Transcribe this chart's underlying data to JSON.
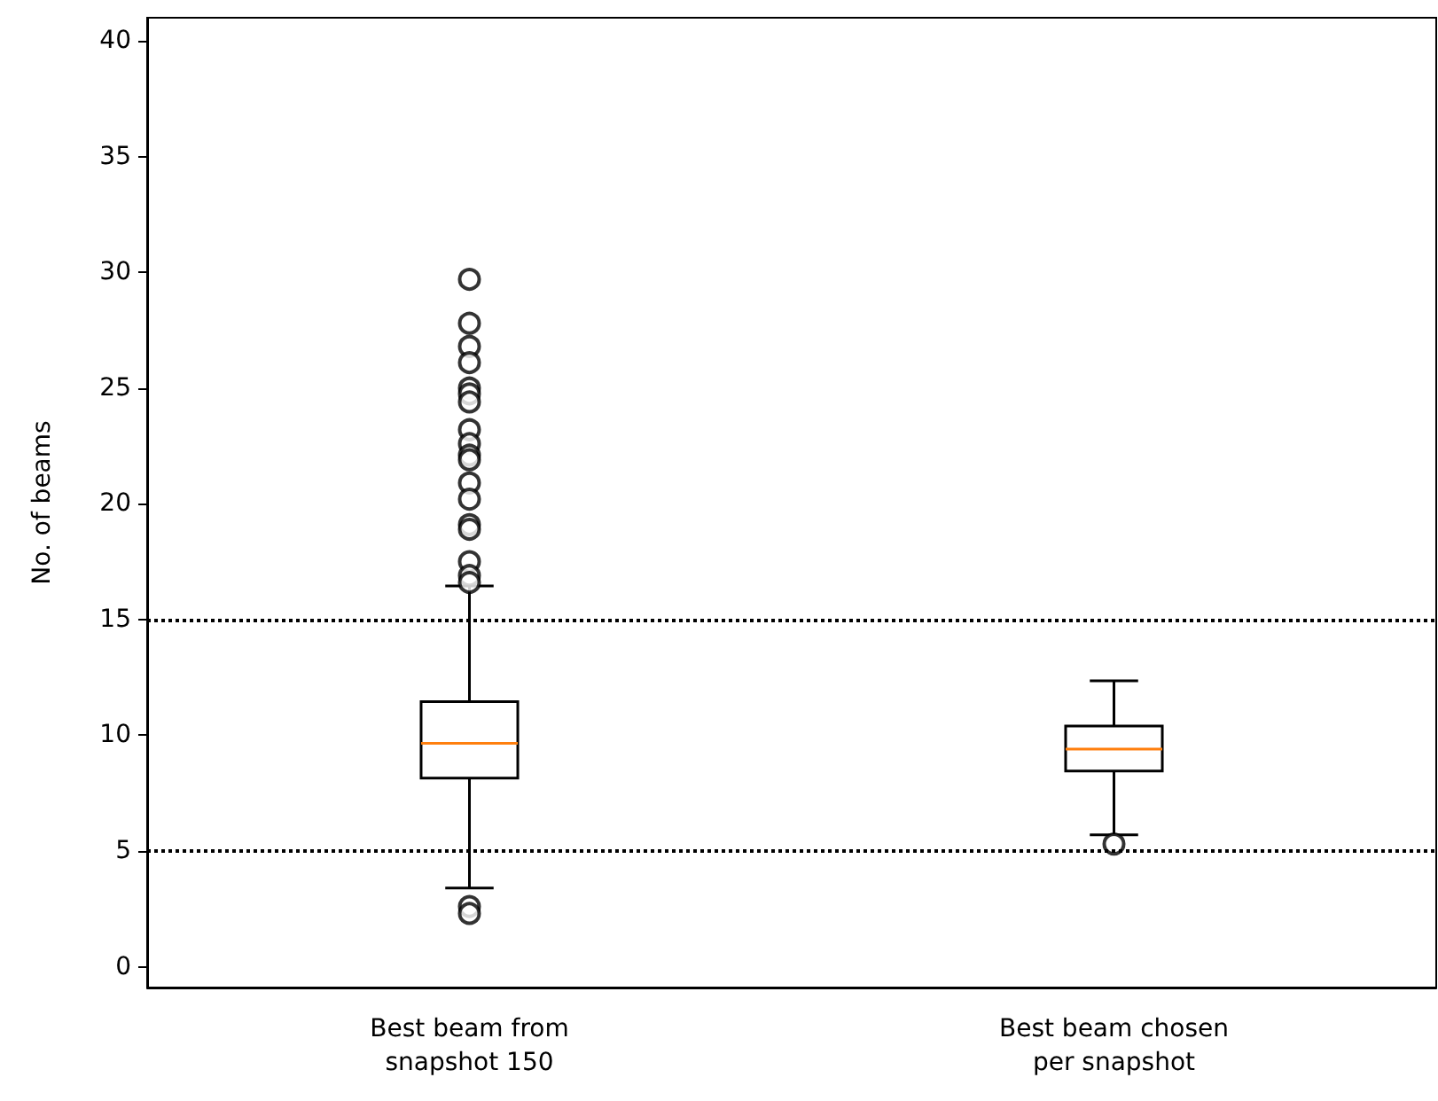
{
  "chart_data": {
    "type": "box",
    "ylabel": "No. of beams",
    "categories": [
      "Best beam from\nsnapshot 150",
      "Best beam chosen\nper snapshot"
    ],
    "boxes": [
      {
        "low": 3.4,
        "q1": 8.15,
        "median": 9.65,
        "q3": 11.45,
        "high": 16.45,
        "outliers": [
          29.7,
          27.8,
          26.8,
          26.1,
          25.0,
          24.75,
          24.4,
          23.2,
          22.6,
          22.1,
          21.9,
          20.9,
          20.2,
          19.1,
          18.9,
          17.5,
          16.9,
          16.6,
          2.6,
          2.3
        ]
      },
      {
        "low": 5.7,
        "q1": 8.45,
        "median": 9.4,
        "q3": 10.4,
        "high": 12.35,
        "outliers": [
          5.3
        ]
      }
    ],
    "color": "#000000",
    "marker": "circle",
    "ylim": [
      -0.9,
      41
    ],
    "yticks": [
      0,
      5,
      10,
      15,
      20,
      25,
      30,
      35,
      40
    ],
    "ref_lines": [
      {
        "axis": "y",
        "value": 15,
        "color": "#000000",
        "line_style": "dotted"
      },
      {
        "axis": "y",
        "value": 5,
        "color": "#000000",
        "line_style": "dotted"
      }
    ],
    "grid": false
  }
}
